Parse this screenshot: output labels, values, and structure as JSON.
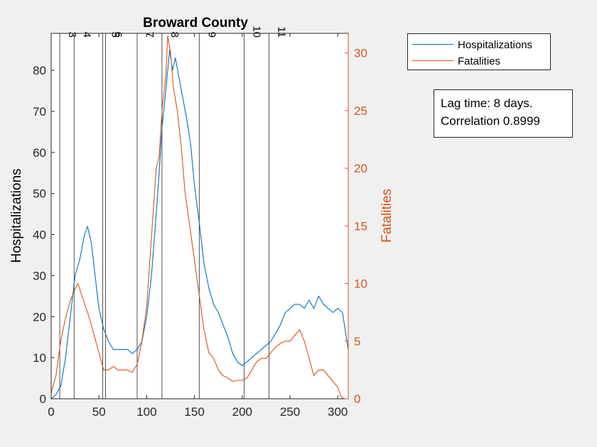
{
  "chart_data": {
    "type": "line",
    "title": "Broward County",
    "xlabel": "",
    "ylabel_left": "Hospitalizations",
    "ylabel_right": "Fatalities",
    "xlim": [
      0,
      311
    ],
    "ylim_left": [
      0,
      89
    ],
    "ylim_right": [
      0,
      31.7
    ],
    "xticks": [
      0,
      50,
      100,
      150,
      200,
      250,
      300
    ],
    "yticks_left": [
      0,
      10,
      20,
      30,
      40,
      50,
      60,
      70,
      80
    ],
    "yticks_right": [
      0,
      5,
      10,
      15,
      20,
      25,
      30
    ],
    "grid": false,
    "legend_location": "northeast outside",
    "vlines": [
      {
        "x": 9,
        "label": "3"
      },
      {
        "x": 24,
        "label": "4"
      },
      {
        "x": 54,
        "label": "5"
      },
      {
        "x": 57,
        "label": "6"
      },
      {
        "x": 90,
        "label": "7"
      },
      {
        "x": 116,
        "label": "8"
      },
      {
        "x": 155,
        "label": "9"
      },
      {
        "x": 202,
        "label": "10"
      },
      {
        "x": 228,
        "label": "11"
      }
    ],
    "series": [
      {
        "name": "Hospitalizations",
        "axis": "left",
        "color": "#0072BD",
        "x": [
          0,
          5,
          10,
          15,
          20,
          25,
          30,
          35,
          38,
          42,
          46,
          50,
          55,
          60,
          65,
          70,
          75,
          80,
          85,
          90,
          95,
          100,
          105,
          110,
          113,
          116,
          120,
          124,
          127,
          130,
          134,
          138,
          142,
          146,
          150,
          155,
          160,
          165,
          170,
          175,
          180,
          185,
          190,
          195,
          200,
          205,
          210,
          215,
          220,
          225,
          230,
          235,
          240,
          245,
          250,
          255,
          260,
          265,
          270,
          275,
          280,
          285,
          290,
          295,
          300,
          305,
          311
        ],
        "values": [
          0,
          1,
          3,
          10,
          20,
          30,
          34,
          40,
          42,
          38,
          30,
          22,
          17,
          14,
          12,
          12,
          12,
          12,
          11,
          12,
          14,
          20,
          30,
          45,
          55,
          66,
          75,
          85,
          80,
          83,
          78,
          73,
          68,
          62,
          52,
          43,
          33,
          27,
          23,
          21,
          18,
          15,
          11,
          9,
          8,
          9,
          10,
          11,
          12,
          13,
          14,
          16,
          18,
          21,
          22,
          23,
          23,
          22,
          24,
          22,
          25,
          23,
          22,
          21,
          22,
          21,
          12
        ]
      },
      {
        "name": "Fatalities",
        "axis": "right",
        "color": "#D95319",
        "x": [
          0,
          5,
          10,
          15,
          20,
          25,
          28,
          32,
          36,
          40,
          45,
          50,
          55,
          60,
          65,
          70,
          75,
          80,
          85,
          90,
          95,
          100,
          105,
          110,
          113,
          116,
          120,
          122,
          125,
          128,
          132,
          136,
          140,
          145,
          150,
          155,
          160,
          165,
          170,
          175,
          180,
          185,
          190,
          195,
          200,
          205,
          210,
          215,
          220,
          225,
          230,
          235,
          240,
          245,
          250,
          255,
          260,
          265,
          270,
          275,
          280,
          285,
          290,
          295,
          300,
          303,
          306
        ],
        "values": [
          0.5,
          2,
          5,
          7,
          8.5,
          9.5,
          10,
          9,
          8,
          7,
          5.5,
          4,
          2.5,
          2.5,
          2.8,
          2.5,
          2.5,
          2.5,
          2.3,
          3,
          5,
          8,
          14,
          20,
          21,
          25,
          28,
          31.5,
          30,
          27,
          25,
          22,
          18,
          15,
          12,
          9,
          6,
          4,
          3.5,
          2.5,
          2,
          1.8,
          1.5,
          1.6,
          1.6,
          1.8,
          2.5,
          3.2,
          3.5,
          3.5,
          4,
          4.5,
          4.8,
          5,
          5,
          5.5,
          6,
          5,
          3.5,
          2,
          2.5,
          2.5,
          2,
          1.5,
          1,
          0.3,
          0
        ]
      }
    ]
  },
  "legend": [
    {
      "label": "Hospitalizations",
      "color": "#0072BD"
    },
    {
      "label": "Fatalities",
      "color": "#D95319"
    }
  ],
  "annotation": {
    "line1": "Lag time: 8 days.",
    "line2": "Correlation 0.8999"
  }
}
